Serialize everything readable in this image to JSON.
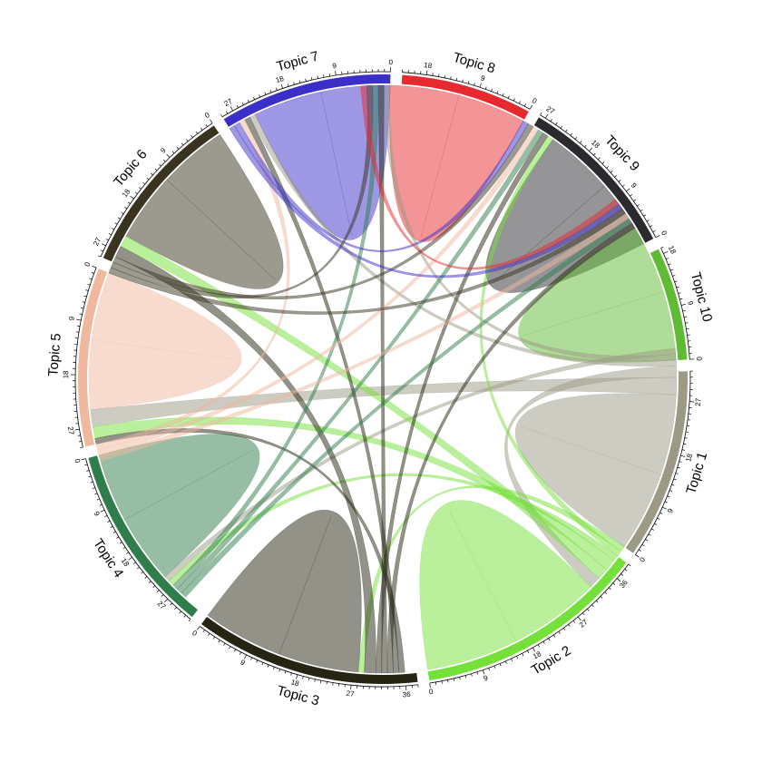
{
  "chart_data": {
    "type": "chord",
    "title": "",
    "sectors": [
      {
        "name": "Topic 1",
        "color": "#9c9a86",
        "total": 32,
        "ticks": [
          0,
          9,
          18,
          27
        ]
      },
      {
        "name": "Topic 2",
        "color": "#76e03a",
        "total": 39,
        "ticks": [
          0,
          9,
          18,
          27,
          36
        ]
      },
      {
        "name": "Topic 3",
        "color": "#262513",
        "total": 38,
        "ticks": [
          0,
          9,
          18,
          27,
          36
        ]
      },
      {
        "name": "Topic 4",
        "color": "#2f7d4b",
        "total": 32,
        "ticks": [
          0,
          9,
          18,
          27
        ]
      },
      {
        "name": "Topic 5",
        "color": "#f0b89f",
        "total": 30,
        "ticks": [
          0,
          9,
          18,
          27
        ]
      },
      {
        "name": "Topic 6",
        "color": "#3a3320",
        "total": 29,
        "ticks": [
          0,
          9,
          18,
          27
        ]
      },
      {
        "name": "Topic 7",
        "color": "#3b2fc9",
        "total": 29,
        "ticks": [
          0,
          9,
          18,
          27
        ]
      },
      {
        "name": "Topic 8",
        "color": "#e82a30",
        "total": 22,
        "ticks": [
          0,
          9,
          18
        ]
      },
      {
        "name": "Topic 9",
        "color": "#2b2b2f",
        "total": 28,
        "ticks": [
          0,
          9,
          18,
          27
        ]
      },
      {
        "name": "Topic 10",
        "color": "#5fba34",
        "total": 19,
        "ticks": [
          0,
          9,
          18
        ]
      }
    ],
    "links": [
      {
        "from": "Topic 1",
        "to": "Topic 1",
        "value": 14
      },
      {
        "from": "Topic 2",
        "to": "Topic 2",
        "value": 16
      },
      {
        "from": "Topic 3",
        "to": "Topic 3",
        "value": 14
      },
      {
        "from": "Topic 4",
        "to": "Topic 4",
        "value": 12
      },
      {
        "from": "Topic 5",
        "to": "Topic 5",
        "value": 12
      },
      {
        "from": "Topic 6",
        "to": "Topic 6",
        "value": 12
      },
      {
        "from": "Topic 7",
        "to": "Topic 7",
        "value": 12
      },
      {
        "from": "Topic 8",
        "to": "Topic 8",
        "value": 12
      },
      {
        "from": "Topic 9",
        "to": "Topic 9",
        "value": 12
      },
      {
        "from": "Topic 10",
        "to": "Topic 10",
        "value": 12
      },
      {
        "from": "Topic 1",
        "to": "Topic 5",
        "value": 3
      },
      {
        "from": "Topic 1",
        "to": "Topic 2",
        "value": 2
      },
      {
        "from": "Topic 1",
        "to": "Topic 7",
        "value": 1
      },
      {
        "from": "Topic 1",
        "to": "Topic 8",
        "value": 1
      },
      {
        "from": "Topic 1",
        "to": "Topic 4",
        "value": 1
      },
      {
        "from": "Topic 2",
        "to": "Topic 6",
        "value": 2
      },
      {
        "from": "Topic 2",
        "to": "Topic 5",
        "value": 2
      },
      {
        "from": "Topic 2",
        "to": "Topic 4",
        "value": 1
      },
      {
        "from": "Topic 2",
        "to": "Topic 9",
        "value": 1
      },
      {
        "from": "Topic 2",
        "to": "Topic 3",
        "value": 1
      },
      {
        "from": "Topic 3",
        "to": "Topic 6",
        "value": 2
      },
      {
        "from": "Topic 3",
        "to": "Topic 9",
        "value": 1
      },
      {
        "from": "Topic 3",
        "to": "Topic 8",
        "value": 1
      },
      {
        "from": "Topic 3",
        "to": "Topic 10",
        "value": 1
      },
      {
        "from": "Topic 3",
        "to": "Topic 7",
        "value": 1
      },
      {
        "from": "Topic 3",
        "to": "Topic 5",
        "value": 1
      },
      {
        "from": "Topic 4",
        "to": "Topic 8",
        "value": 1
      },
      {
        "from": "Topic 4",
        "to": "Topic 9",
        "value": 1
      },
      {
        "from": "Topic 4",
        "to": "Topic 10",
        "value": 1
      },
      {
        "from": "Topic 5",
        "to": "Topic 7",
        "value": 1
      },
      {
        "from": "Topic 5",
        "to": "Topic 9",
        "value": 1
      },
      {
        "from": "Topic 5",
        "to": "Topic 10",
        "value": 1
      },
      {
        "from": "Topic 6",
        "to": "Topic 9",
        "value": 1
      },
      {
        "from": "Topic 6",
        "to": "Topic 8",
        "value": 1
      },
      {
        "from": "Topic 6",
        "to": "Topic 10",
        "value": 1
      },
      {
        "from": "Topic 7",
        "to": "Topic 9",
        "value": 1
      },
      {
        "from": "Topic 7",
        "to": "Topic 10",
        "value": 1
      },
      {
        "from": "Topic 8",
        "to": "Topic 10",
        "value": 1
      }
    ]
  }
}
